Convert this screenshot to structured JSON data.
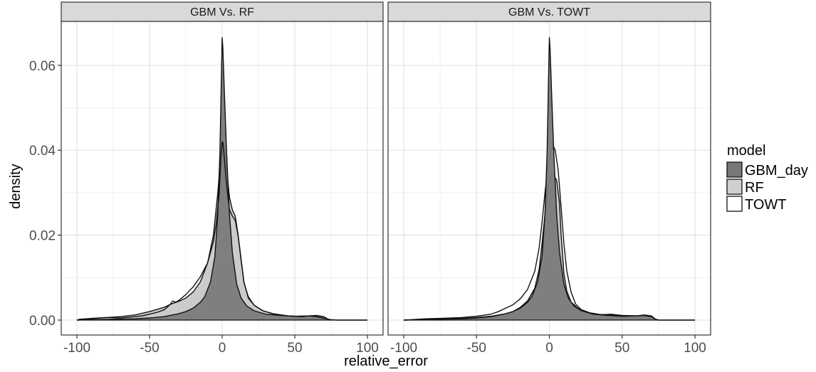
{
  "chart_data": {
    "type": "area",
    "xlabel": "relative_error",
    "ylabel": "density",
    "xlim": [
      -100,
      100
    ],
    "ylim": [
      0,
      0.067
    ],
    "x_ticks": [
      -100,
      -50,
      0,
      50,
      100
    ],
    "x_tick_labels": [
      "-100",
      "-50",
      "0",
      "50",
      "100"
    ],
    "y_ticks": [
      0.0,
      0.02,
      0.04,
      0.06
    ],
    "y_tick_labels": [
      "0.00",
      "0.02",
      "0.04",
      "0.06"
    ],
    "grid": true,
    "legend": {
      "title": "model",
      "position": "right",
      "entries": [
        {
          "label": "GBM_day",
          "fill": "#777777"
        },
        {
          "label": "RF",
          "fill": "#cfcfcf"
        },
        {
          "label": "TOWT",
          "fill": "#ffffff"
        }
      ]
    },
    "panels": [
      {
        "strip": "GBM Vs. RF",
        "series": [
          {
            "name": "RF",
            "fill": "#c8c8c8",
            "points": [
              [
                -100,
                0
              ],
              [
                -98,
                0.0001
              ],
              [
                -90,
                0.0003
              ],
              [
                -80,
                0.0006
              ],
              [
                -70,
                0.0008
              ],
              [
                -60,
                0.0012
              ],
              [
                -50,
                0.002
              ],
              [
                -40,
                0.003
              ],
              [
                -35,
                0.0038
              ],
              [
                -30,
                0.0044
              ],
              [
                -25,
                0.0052
              ],
              [
                -20,
                0.0066
              ],
              [
                -15,
                0.009
              ],
              [
                -10,
                0.0135
              ],
              [
                -6,
                0.02
              ],
              [
                -3,
                0.03
              ],
              [
                -1,
                0.0385
              ],
              [
                0,
                0.0416
              ],
              [
                1,
                0.0412
              ],
              [
                3,
                0.036
              ],
              [
                5,
                0.029
              ],
              [
                7,
                0.026
              ],
              [
                9,
                0.0245
              ],
              [
                11,
                0.02
              ],
              [
                13,
                0.0145
              ],
              [
                15,
                0.009
              ],
              [
                18,
                0.0052
              ],
              [
                22,
                0.0035
              ],
              [
                28,
                0.0022
              ],
              [
                35,
                0.0015
              ],
              [
                45,
                0.001
              ],
              [
                55,
                0.0008
              ],
              [
                60,
                0.001
              ],
              [
                65,
                0.0009
              ],
              [
                68,
                0.0007
              ],
              [
                72,
                0.0002
              ],
              [
                75,
                0
              ]
            ]
          },
          {
            "name": "GBM_day",
            "fill": "#7a7a7a",
            "points": [
              [
                -100,
                0
              ],
              [
                -90,
                0.0001
              ],
              [
                -75,
                0.0002
              ],
              [
                -60,
                0.0003
              ],
              [
                -50,
                0.0005
              ],
              [
                -40,
                0.0008
              ],
              [
                -30,
                0.0015
              ],
              [
                -25,
                0.002
              ],
              [
                -20,
                0.0028
              ],
              [
                -15,
                0.0042
              ],
              [
                -12,
                0.0055
              ],
              [
                -8,
                0.009
              ],
              [
                -5,
                0.015
              ],
              [
                -3,
                0.025
              ],
              [
                -1.5,
                0.04
              ],
              [
                -0.5,
                0.058
              ],
              [
                0,
                0.0665
              ],
              [
                0.5,
                0.064
              ],
              [
                1.5,
                0.054
              ],
              [
                3,
                0.04
              ],
              [
                5,
                0.025
              ],
              [
                7,
                0.016
              ],
              [
                10,
                0.0085
              ],
              [
                13,
                0.0052
              ],
              [
                17,
                0.0033
              ],
              [
                22,
                0.0022
              ],
              [
                30,
                0.0014
              ],
              [
                40,
                0.0011
              ],
              [
                50,
                0.0009
              ],
              [
                60,
                0.001
              ],
              [
                65,
                0.0011
              ],
              [
                70,
                0.0008
              ],
              [
                73,
                0.0002
              ],
              [
                75,
                0
              ]
            ]
          },
          {
            "name": "TOWT",
            "fill": "none",
            "points": [
              [
                -100,
                0
              ],
              [
                -98,
                0.0002
              ],
              [
                -90,
                0.0004
              ],
              [
                -80,
                0.0006
              ],
              [
                -70,
                0.0005
              ],
              [
                -60,
                0.0008
              ],
              [
                -55,
                0.001
              ],
              [
                -50,
                0.0014
              ],
              [
                -45,
                0.0018
              ],
              [
                -40,
                0.0024
              ],
              [
                -36,
                0.0036
              ],
              [
                -34,
                0.0045
              ],
              [
                -32,
                0.0042
              ],
              [
                -30,
                0.0046
              ],
              [
                -25,
                0.006
              ],
              [
                -20,
                0.0078
              ],
              [
                -15,
                0.0102
              ],
              [
                -10,
                0.0135
              ],
              [
                -6,
                0.0185
              ],
              [
                -4,
                0.023
              ],
              [
                -2,
                0.03
              ],
              [
                -1,
                0.0375
              ],
              [
                0,
                0.042
              ],
              [
                0.5,
                0.0418
              ],
              [
                1,
                0.04
              ],
              [
                3,
                0.032
              ],
              [
                5,
                0.026
              ],
              [
                7,
                0.0245
              ],
              [
                9,
                0.0235
              ],
              [
                11,
                0.0198
              ],
              [
                13,
                0.0142
              ],
              [
                15,
                0.0088
              ],
              [
                18,
                0.0055
              ],
              [
                22,
                0.0035
              ],
              [
                28,
                0.0022
              ],
              [
                35,
                0.0015
              ],
              [
                45,
                0.001
              ],
              [
                55,
                0.0008
              ],
              [
                60,
                0.001
              ],
              [
                65,
                0.0008
              ],
              [
                70,
                0.0004
              ],
              [
                75,
                0.0001
              ],
              [
                80,
                0
              ],
              [
                100,
                0
              ]
            ]
          }
        ]
      },
      {
        "strip": "GBM Vs. TOWT",
        "series": [
          {
            "name": "TOWT",
            "fill": "#ffffff",
            "points": [
              [
                -100,
                0
              ],
              [
                -95,
                0.0001
              ],
              [
                -85,
                0.0003
              ],
              [
                -75,
                0.0004
              ],
              [
                -60,
                0.0006
              ],
              [
                -50,
                0.0009
              ],
              [
                -40,
                0.0014
              ],
              [
                -35,
                0.002
              ],
              [
                -30,
                0.0028
              ],
              [
                -25,
                0.0036
              ],
              [
                -20,
                0.005
              ],
              [
                -15,
                0.0072
              ],
              [
                -10,
                0.0115
              ],
              [
                -7,
                0.017
              ],
              [
                -5,
                0.023
              ],
              [
                -3,
                0.03
              ],
              [
                -1,
                0.036
              ],
              [
                1,
                0.0395
              ],
              [
                2.5,
                0.0412
              ],
              [
                4,
                0.04
              ],
              [
                6,
                0.0355
              ],
              [
                8,
                0.027
              ],
              [
                10,
                0.018
              ],
              [
                12,
                0.0115
              ],
              [
                15,
                0.0065
              ],
              [
                18,
                0.0038
              ],
              [
                22,
                0.0024
              ],
              [
                28,
                0.0016
              ],
              [
                35,
                0.0012
              ],
              [
                42,
                0.0014
              ],
              [
                50,
                0.0011
              ],
              [
                60,
                0.001
              ],
              [
                65,
                0.0012
              ],
              [
                70,
                0.001
              ],
              [
                73,
                0.0002
              ],
              [
                75,
                0
              ],
              [
                100,
                0
              ]
            ]
          },
          {
            "name": "RF",
            "fill": "#c8c8c8",
            "points": [
              [
                -100,
                0
              ],
              [
                -90,
                0.0001
              ],
              [
                -75,
                0.0002
              ],
              [
                -60,
                0.0004
              ],
              [
                -50,
                0.0006
              ],
              [
                -40,
                0.0009
              ],
              [
                -30,
                0.0015
              ],
              [
                -25,
                0.002
              ],
              [
                -20,
                0.003
              ],
              [
                -15,
                0.0045
              ],
              [
                -10,
                0.0075
              ],
              [
                -7,
                0.012
              ],
              [
                -5,
                0.018
              ],
              [
                -3,
                0.025
              ],
              [
                -1,
                0.031
              ],
              [
                1,
                0.034
              ],
              [
                3,
                0.034
              ],
              [
                5,
                0.033
              ],
              [
                7,
                0.0275
              ],
              [
                8,
                0.0205
              ],
              [
                10,
                0.011
              ],
              [
                12,
                0.0068
              ],
              [
                15,
                0.0042
              ],
              [
                20,
                0.0027
              ],
              [
                28,
                0.0017
              ],
              [
                35,
                0.0013
              ],
              [
                42,
                0.0013
              ],
              [
                50,
                0.001
              ],
              [
                60,
                0.001
              ],
              [
                65,
                0.001
              ],
              [
                70,
                0.0008
              ],
              [
                73,
                0.0002
              ],
              [
                75,
                0
              ]
            ]
          },
          {
            "name": "GBM_day",
            "fill": "#7a7a7a",
            "points": [
              [
                -100,
                0
              ],
              [
                -90,
                0.0001
              ],
              [
                -75,
                0.0002
              ],
              [
                -60,
                0.0003
              ],
              [
                -50,
                0.0005
              ],
              [
                -40,
                0.0008
              ],
              [
                -30,
                0.0015
              ],
              [
                -25,
                0.002
              ],
              [
                -20,
                0.0028
              ],
              [
                -15,
                0.0042
              ],
              [
                -12,
                0.0055
              ],
              [
                -8,
                0.009
              ],
              [
                -5,
                0.015
              ],
              [
                -3,
                0.025
              ],
              [
                -1.5,
                0.04
              ],
              [
                -0.5,
                0.058
              ],
              [
                0,
                0.0665
              ],
              [
                0.5,
                0.064
              ],
              [
                1.5,
                0.054
              ],
              [
                3,
                0.04
              ],
              [
                5,
                0.025
              ],
              [
                7,
                0.016
              ],
              [
                10,
                0.0085
              ],
              [
                13,
                0.0052
              ],
              [
                17,
                0.0033
              ],
              [
                22,
                0.0022
              ],
              [
                30,
                0.0014
              ],
              [
                40,
                0.0011
              ],
              [
                50,
                0.0009
              ],
              [
                60,
                0.001
              ],
              [
                65,
                0.0011
              ],
              [
                70,
                0.0008
              ],
              [
                73,
                0.0002
              ],
              [
                75,
                0
              ]
            ]
          }
        ]
      }
    ]
  }
}
